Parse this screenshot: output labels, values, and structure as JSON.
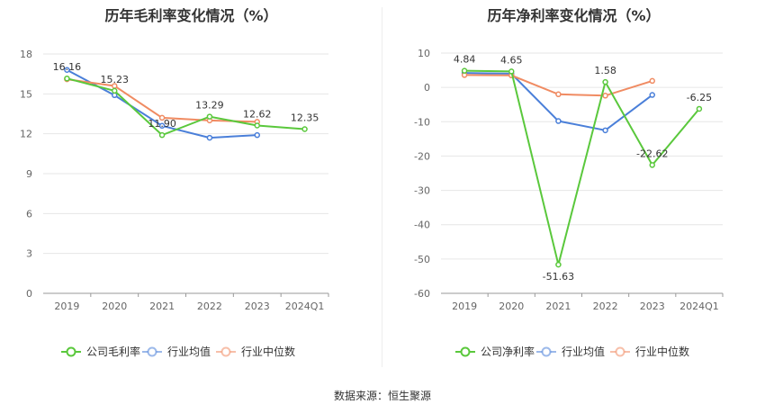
{
  "source": "数据来源：恒生聚源",
  "chart_data": [
    {
      "type": "line",
      "title": "历年毛利率变化情况（%）",
      "categories": [
        "2019",
        "2020",
        "2021",
        "2022",
        "2023",
        "2024Q1"
      ],
      "ylim": [
        0,
        18
      ],
      "yticks": [
        0,
        3,
        6,
        9,
        12,
        15,
        18
      ],
      "grid": true,
      "legend_position": "bottom",
      "series": [
        {
          "name": "公司毛利率",
          "color": "#5ac83c",
          "values": [
            16.16,
            15.23,
            11.9,
            13.29,
            12.62,
            12.35
          ],
          "labels": [
            "16.16",
            "15.23",
            "11.90",
            "13.29",
            "12.62",
            "12.35"
          ]
        },
        {
          "name": "行业均值",
          "color": "#4a7fd9",
          "values": [
            16.8,
            14.9,
            12.6,
            11.7,
            11.9,
            null
          ]
        },
        {
          "name": "行业中位数",
          "color": "#f08b62",
          "values": [
            16.1,
            15.6,
            13.2,
            13.0,
            12.9,
            null
          ]
        }
      ]
    },
    {
      "type": "line",
      "title": "历年净利率变化情况（%）",
      "categories": [
        "2019",
        "2020",
        "2021",
        "2022",
        "2023",
        "2024Q1"
      ],
      "ylim": [
        -60,
        10
      ],
      "yticks": [
        -60,
        -50,
        -40,
        -30,
        -20,
        -10,
        0,
        10
      ],
      "grid": true,
      "legend_position": "bottom",
      "series": [
        {
          "name": "公司净利率",
          "color": "#5ac83c",
          "values": [
            4.84,
            4.65,
            -51.63,
            1.58,
            -22.62,
            -6.25
          ],
          "labels": [
            "4.84",
            "4.65",
            "-51.63",
            "1.58",
            "-22.62",
            "-6.25"
          ]
        },
        {
          "name": "行业均值",
          "color": "#4a7fd9",
          "values": [
            4.2,
            4.0,
            -9.8,
            -12.5,
            -2.2,
            null
          ]
        },
        {
          "name": "行业中位数",
          "color": "#f08b62",
          "values": [
            3.6,
            3.5,
            -2.0,
            -2.4,
            1.9,
            null
          ]
        }
      ]
    }
  ]
}
